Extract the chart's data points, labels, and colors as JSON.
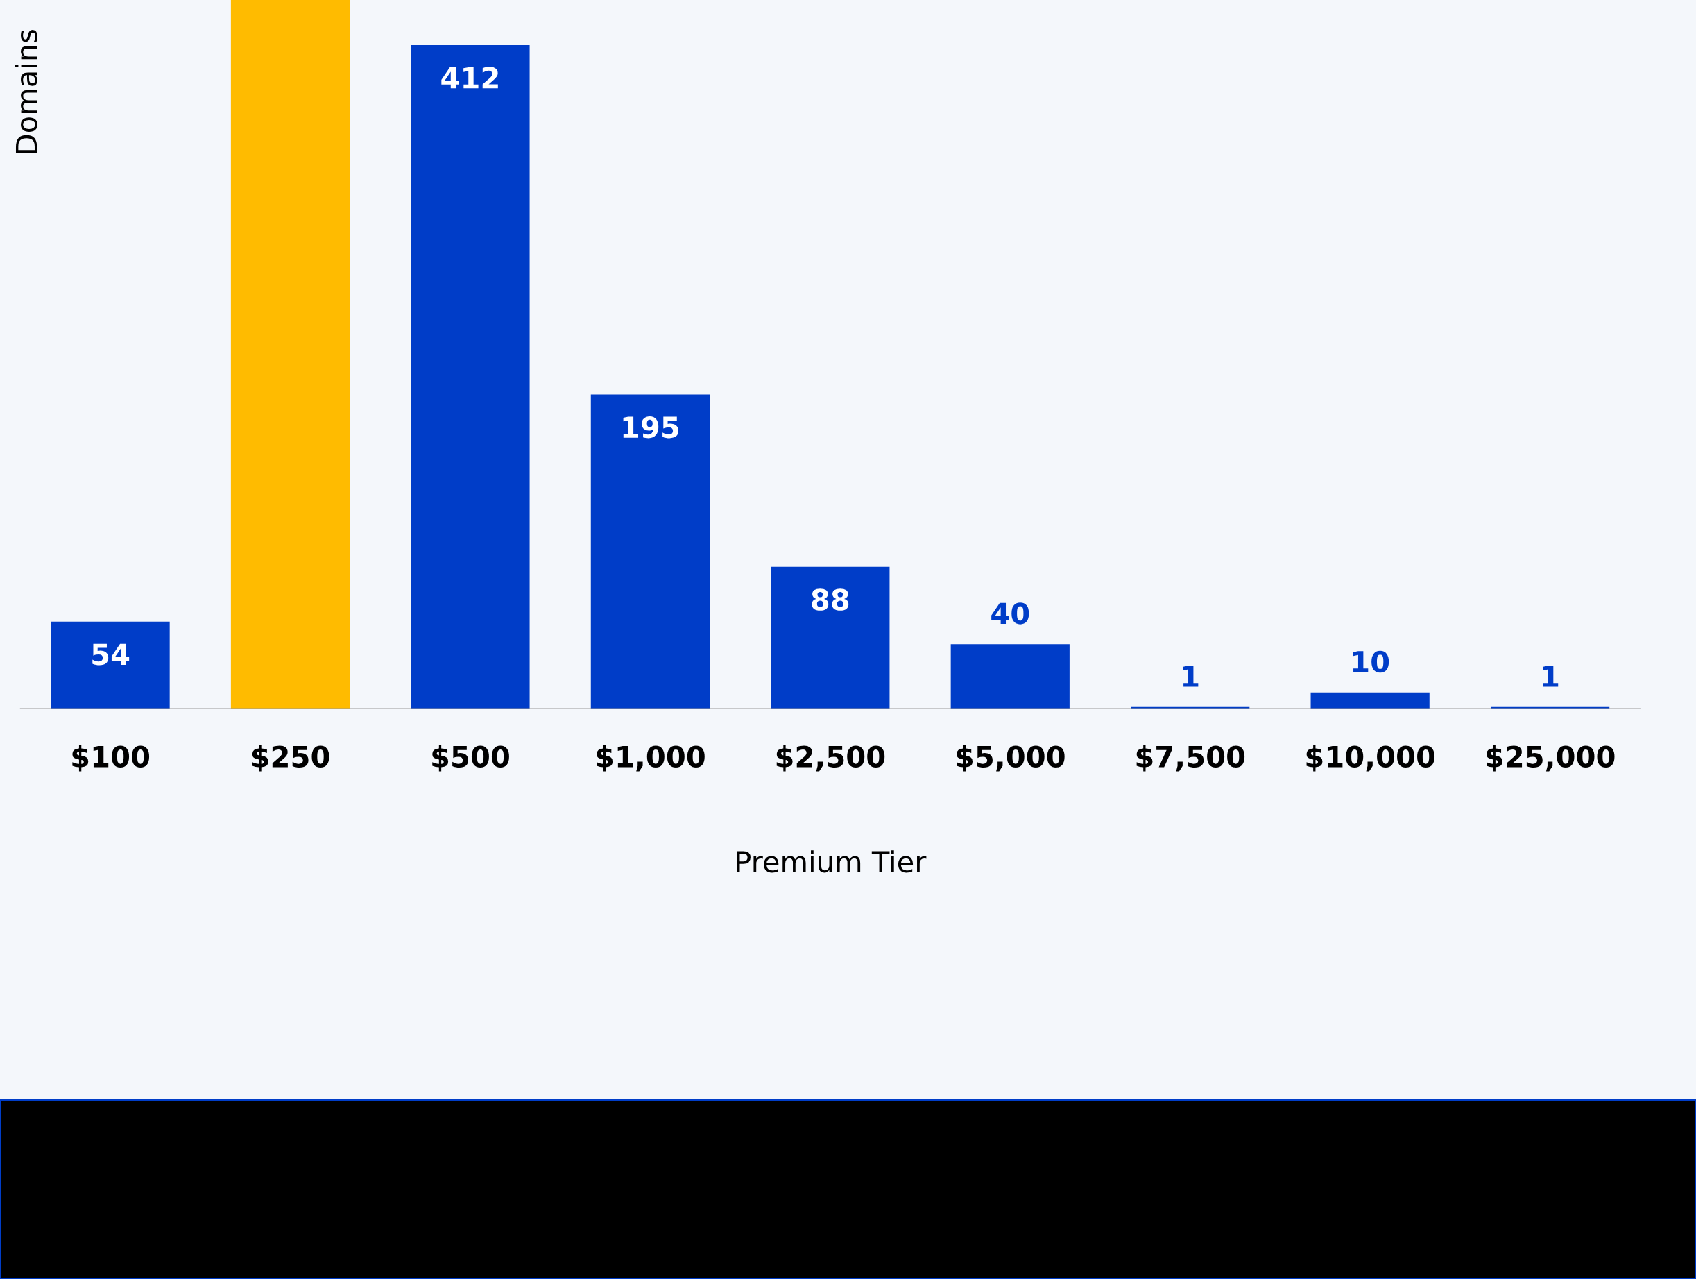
{
  "chart_data": {
    "type": "bar",
    "xlabel": "Premium Tier",
    "ylabel": "Domains",
    "categories": [
      "$100",
      "$250",
      "$500",
      "$1,000",
      "$2,500",
      "$5,000",
      "$7,500",
      "$10,000",
      "$25,000"
    ],
    "values": [
      54,
      440,
      412,
      195,
      88,
      40,
      1,
      10,
      1
    ],
    "value_labels": [
      "54",
      null,
      "412",
      "195",
      "88",
      "40",
      "1",
      "10",
      "1"
    ],
    "colors": [
      "#003dc8",
      "#ffbb00",
      "#003dc8",
      "#003dc8",
      "#003dc8",
      "#003dc8",
      "#003dc8",
      "#003dc8",
      "#003dc8"
    ],
    "ylim": [
      0,
      440
    ],
    "tick_labels": "x",
    "grid": false,
    "legend": false
  }
}
